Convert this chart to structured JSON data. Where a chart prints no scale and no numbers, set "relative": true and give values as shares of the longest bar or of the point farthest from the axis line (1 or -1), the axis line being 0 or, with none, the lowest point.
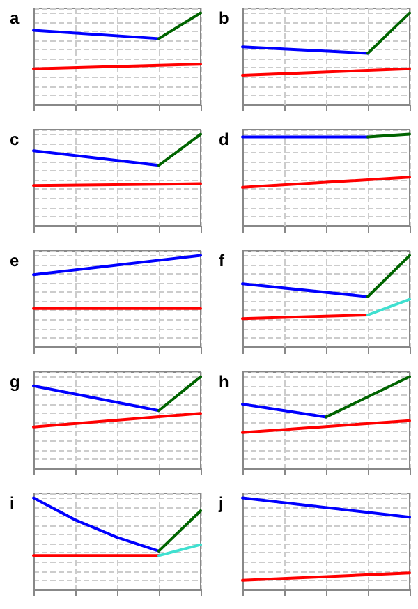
{
  "chart_data": [
    {
      "type": "line",
      "title": "a",
      "relative": true,
      "grid": true,
      "categories": [
        null,
        null,
        null,
        null,
        null
      ],
      "series": [
        {
          "color": "#0000ff",
          "values": [
            0.81,
            null,
            null,
            0.72,
            null
          ]
        },
        {
          "color": "#006400",
          "values": [
            null,
            null,
            null,
            0.72,
            1
          ]
        },
        {
          "color": "#ff0000",
          "values": [
            0.39,
            null,
            null,
            null,
            0.44
          ]
        }
      ]
    },
    {
      "type": "line",
      "title": "b",
      "relative": true,
      "grid": true,
      "categories": [
        null,
        null,
        null,
        null,
        null
      ],
      "series": [
        {
          "color": "#0000ff",
          "values": [
            0.63,
            null,
            null,
            0.56,
            null
          ]
        },
        {
          "color": "#006400",
          "values": [
            null,
            null,
            null,
            0.56,
            1
          ]
        },
        {
          "color": "#ff0000",
          "values": [
            0.32,
            null,
            null,
            null,
            0.39
          ]
        }
      ]
    },
    {
      "type": "line",
      "title": "c",
      "relative": true,
      "grid": true,
      "categories": [
        null,
        null,
        null,
        null,
        null
      ],
      "series": [
        {
          "color": "#0000ff",
          "values": [
            0.82,
            null,
            null,
            0.66,
            null
          ]
        },
        {
          "color": "#006400",
          "values": [
            null,
            null,
            null,
            0.66,
            1
          ]
        },
        {
          "color": "#ff0000",
          "values": [
            0.44,
            null,
            null,
            null,
            0.46
          ]
        }
      ]
    },
    {
      "type": "line",
      "title": "d",
      "relative": true,
      "grid": true,
      "categories": [
        null,
        null,
        null,
        null,
        null
      ],
      "series": [
        {
          "color": "#0000ff",
          "values": [
            0.97,
            null,
            null,
            0.97,
            null
          ]
        },
        {
          "color": "#006400",
          "values": [
            null,
            null,
            null,
            0.97,
            1
          ]
        },
        {
          "color": "#ff0000",
          "values": [
            0.42,
            null,
            null,
            null,
            0.53
          ]
        }
      ]
    },
    {
      "type": "line",
      "title": "e",
      "relative": true,
      "grid": true,
      "categories": [
        null,
        null,
        null,
        null,
        null
      ],
      "series": [
        {
          "color": "#0000ff",
          "values": [
            0.79,
            null,
            null,
            null,
            1
          ]
        },
        {
          "color": "#ff0000",
          "values": [
            0.42,
            null,
            null,
            null,
            0.42
          ]
        }
      ]
    },
    {
      "type": "line",
      "title": "f",
      "relative": true,
      "grid": true,
      "categories": [
        null,
        null,
        null,
        null,
        null
      ],
      "series": [
        {
          "color": "#0000ff",
          "values": [
            0.69,
            null,
            null,
            0.55,
            null
          ]
        },
        {
          "color": "#006400",
          "values": [
            null,
            null,
            null,
            0.55,
            1
          ]
        },
        {
          "color": "#ff0000",
          "values": [
            0.31,
            null,
            null,
            0.35,
            null
          ]
        },
        {
          "color": "#40e0d0",
          "values": [
            null,
            null,
            null,
            0.35,
            0.52
          ]
        }
      ]
    },
    {
      "type": "line",
      "title": "g",
      "relative": true,
      "grid": true,
      "categories": [
        null,
        null,
        null,
        null,
        null
      ],
      "series": [
        {
          "color": "#0000ff",
          "values": [
            0.9,
            null,
            null,
            0.63,
            null
          ]
        },
        {
          "color": "#006400",
          "values": [
            null,
            null,
            null,
            0.63,
            1
          ]
        },
        {
          "color": "#ff0000",
          "values": [
            0.45,
            null,
            null,
            null,
            0.6
          ]
        }
      ]
    },
    {
      "type": "line",
      "title": "h",
      "relative": true,
      "grid": true,
      "categories": [
        null,
        null,
        null,
        null,
        null
      ],
      "series": [
        {
          "color": "#0000ff",
          "values": [
            0.7,
            null,
            0.56,
            null,
            null
          ]
        },
        {
          "color": "#006400",
          "values": [
            null,
            null,
            0.56,
            0.78,
            1
          ]
        },
        {
          "color": "#ff0000",
          "values": [
            0.39,
            null,
            null,
            null,
            0.52
          ]
        }
      ]
    },
    {
      "type": "line",
      "title": "i",
      "relative": true,
      "grid": true,
      "categories": [
        null,
        null,
        null,
        null,
        null
      ],
      "series": [
        {
          "color": "#0000ff",
          "values": [
            1,
            0.76,
            0.57,
            0.42,
            null
          ]
        },
        {
          "color": "#006400",
          "values": [
            null,
            null,
            null,
            0.42,
            0.86
          ]
        },
        {
          "color": "#ff0000",
          "values": [
            0.37,
            null,
            null,
            0.37,
            null
          ]
        },
        {
          "color": "#40e0d0",
          "values": [
            null,
            null,
            null,
            0.37,
            0.49
          ]
        }
      ]
    },
    {
      "type": "line",
      "title": "j",
      "relative": true,
      "grid": true,
      "categories": [
        null,
        null,
        null,
        null,
        null
      ],
      "series": [
        {
          "color": "#0000ff",
          "values": [
            1,
            null,
            null,
            null,
            0.79
          ]
        },
        {
          "color": "#ff0000",
          "values": [
            0.1,
            null,
            null,
            null,
            0.18
          ]
        }
      ]
    }
  ]
}
